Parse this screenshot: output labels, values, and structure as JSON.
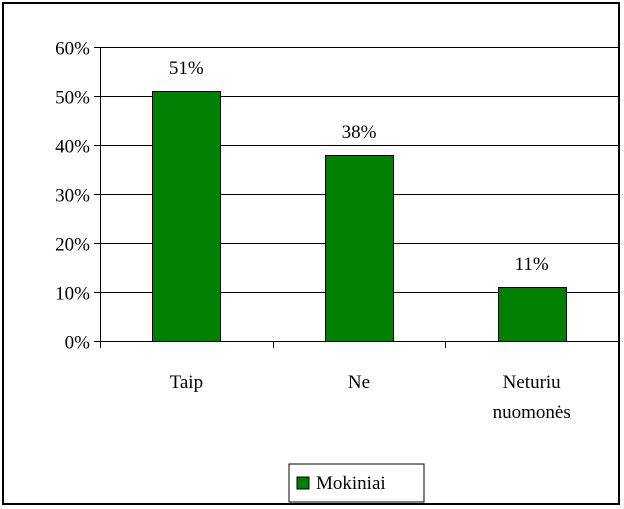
{
  "chart_data": {
    "type": "bar",
    "categories": [
      "Taip",
      "Ne",
      "Neturiu nuomonės"
    ],
    "category_lines": [
      [
        "Taip"
      ],
      [
        "Ne"
      ],
      [
        "Neturiu",
        "nuomonės"
      ]
    ],
    "series": [
      {
        "name": "Mokiniai",
        "values": [
          51,
          38,
          11
        ],
        "color": "#008000"
      }
    ],
    "data_labels": [
      "51%",
      "38%",
      "11%"
    ],
    "ylim": [
      0,
      60
    ],
    "yticks": [
      0,
      10,
      20,
      30,
      40,
      50,
      60
    ],
    "ytick_labels": [
      "0%",
      "10%",
      "20%",
      "30%",
      "40%",
      "50%",
      "60%"
    ],
    "grid": true,
    "legend": {
      "position": "bottom",
      "label": "Mokiniai"
    }
  }
}
